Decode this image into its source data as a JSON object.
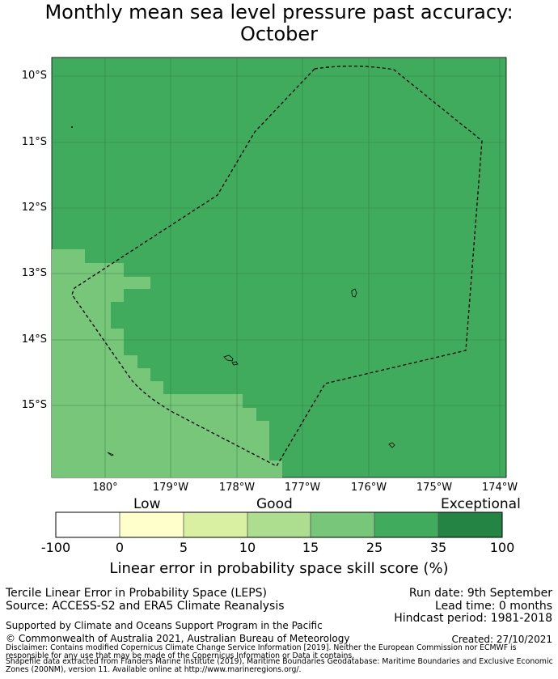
{
  "title": "Monthly mean sea level pressure past accuracy:",
  "subtitle": "October",
  "map": {
    "lat_ticks": [
      "10°S",
      "11°S",
      "12°S",
      "13°S",
      "14°S",
      "15°S"
    ],
    "lon_ticks": [
      "180°",
      "179°W",
      "178°W",
      "177°W",
      "176°W",
      "175°W",
      "174°W"
    ],
    "colors": {
      "dominant": "#41ab5d",
      "secondary": "#78c679",
      "grid": "#2e7a44",
      "boundary": "#000000"
    },
    "boundary_style": "dashed",
    "grid": true
  },
  "colorbar": {
    "categories": [
      "Low",
      "Good",
      "Exceptional"
    ],
    "ticks": [
      "-100",
      "0",
      "5",
      "10",
      "15",
      "25",
      "35",
      "100"
    ],
    "colors": [
      "#ffffff",
      "#ffffcc",
      "#d9f0a3",
      "#addd8e",
      "#78c679",
      "#41ab5d",
      "#238443"
    ],
    "label": "Linear error in probability space skill score (%)"
  },
  "footer": {
    "line1": "Tercile Linear Error in Probability Space (LEPS)",
    "line2": "Source: ACCESS-S2 and ERA5 Climate Reanalysis",
    "run_date": "Run date: 9th September",
    "lead_time": "Lead time: 0 months",
    "hindcast": "Hindcast period: 1981-2018",
    "support": "Supported by Climate and Oceans Support Program in the Pacific",
    "copyright": "© Commonwealth of Australia 2021, Australian Bureau of Meteorology",
    "created": "Created: 27/10/2021",
    "disclaimer1": "Disclaimer: Contains modified Copernicus Climate Change Service Information [2019]. Neither the European Commission nor ECMWF is",
    "disclaimer2": "responsible for any use that may be made of the Copernicus Information or Data it contains.",
    "disclaimer3": "Shapefile data extracted from Flanders Marine Institute (2019), Maritime Boundaries Geodatabase: Maritime Boundaries and Exclusive Economic",
    "disclaimer4": "Zones (200NM), version 11. Available online at http://www.marineregions.org/."
  }
}
